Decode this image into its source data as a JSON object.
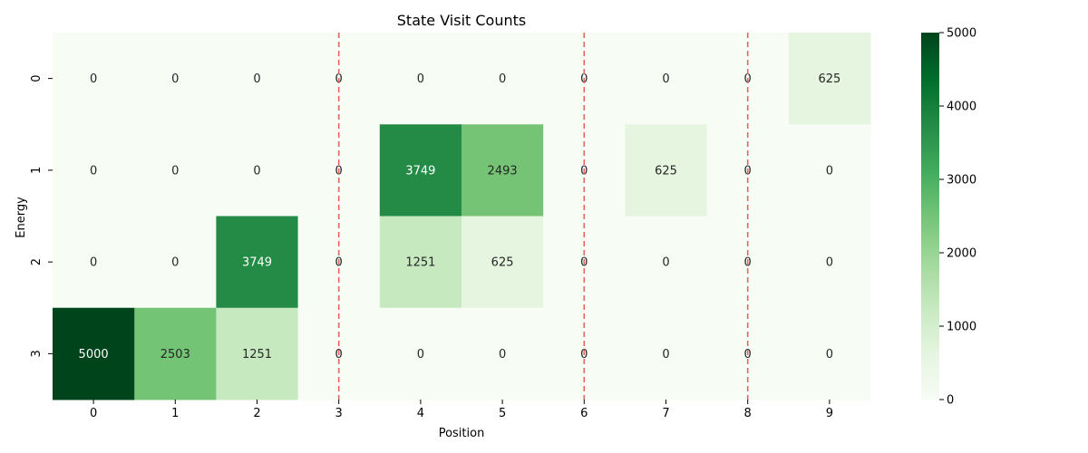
{
  "chart_data": {
    "type": "heatmap",
    "title": "State Visit Counts",
    "xlabel": "Position",
    "ylabel": "Energy",
    "x_categories": [
      "0",
      "1",
      "2",
      "3",
      "4",
      "5",
      "6",
      "7",
      "8",
      "9"
    ],
    "y_categories": [
      "0",
      "1",
      "2",
      "3"
    ],
    "values": [
      [
        0,
        0,
        0,
        0,
        0,
        0,
        0,
        0,
        0,
        625
      ],
      [
        0,
        0,
        0,
        0,
        3749,
        2493,
        0,
        625,
        0,
        0
      ],
      [
        0,
        0,
        3749,
        0,
        1251,
        625,
        0,
        0,
        0,
        0
      ],
      [
        5000,
        2503,
        1251,
        0,
        0,
        0,
        0,
        0,
        0,
        0
      ]
    ],
    "vmin": 0,
    "vmax": 5000,
    "colormap": "Greens",
    "colorbar_ticks": [
      0,
      1000,
      2000,
      3000,
      4000,
      5000
    ],
    "vertical_reference_lines": {
      "x_positions": [
        3,
        6,
        8
      ],
      "color": "#e8655a",
      "style": "dashed"
    },
    "grid": false
  }
}
